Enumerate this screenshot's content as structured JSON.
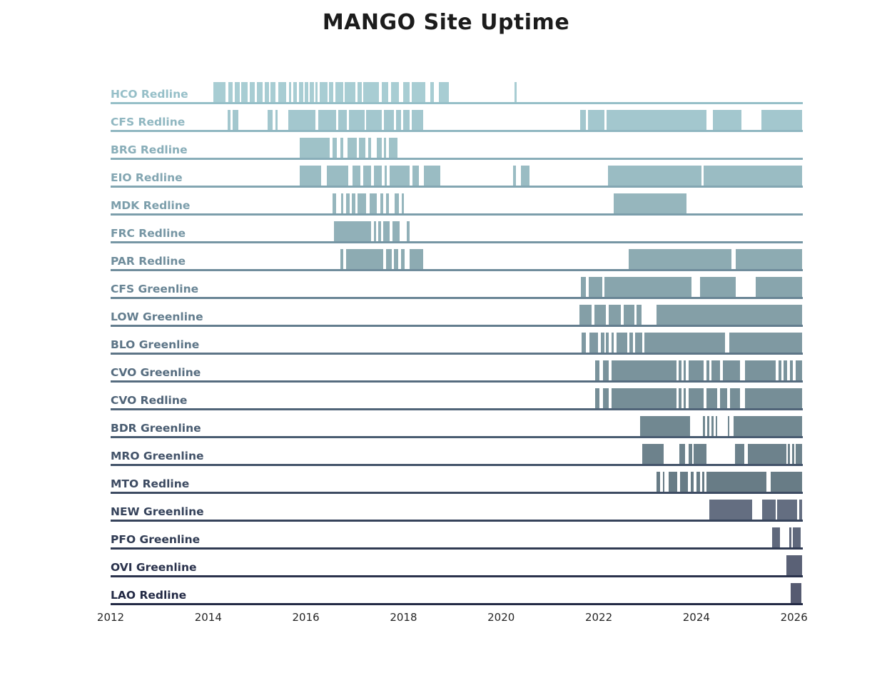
{
  "title": "MANGO Site Uptime",
  "chart_data": {
    "type": "timeline",
    "title": "MANGO Site Uptime",
    "xlabel": "",
    "ylabel": "",
    "x_axis": {
      "range": [
        2012,
        2026.18
      ],
      "ticks": [
        2012,
        2014,
        2016,
        2018,
        2020,
        2022,
        2024,
        2026
      ],
      "tick_labels": [
        "2012",
        "2014",
        "2016",
        "2018",
        "2020",
        "2022",
        "2024",
        "2026"
      ]
    },
    "legend": "none",
    "grid": "off",
    "rows": [
      {
        "label": "HCO Redline",
        "bar_color": "#a8cdd3",
        "line_color": "#96bfc8",
        "segments": [
          [
            2014.1,
            2014.36
          ],
          [
            2014.41,
            2014.5
          ],
          [
            2014.54,
            2014.64
          ],
          [
            2014.68,
            2014.8
          ],
          [
            2014.85,
            2014.95
          ],
          [
            2015.0,
            2015.12
          ],
          [
            2015.16,
            2015.25
          ],
          [
            2015.28,
            2015.38
          ],
          [
            2015.44,
            2015.6
          ],
          [
            2015.65,
            2015.7
          ],
          [
            2015.74,
            2015.82
          ],
          [
            2015.86,
            2015.94
          ],
          [
            2015.97,
            2016.05
          ],
          [
            2016.08,
            2016.16
          ],
          [
            2016.19,
            2016.24
          ],
          [
            2016.28,
            2016.44
          ],
          [
            2016.48,
            2016.56
          ],
          [
            2016.6,
            2016.76
          ],
          [
            2016.8,
            2017.02
          ],
          [
            2017.06,
            2017.14
          ],
          [
            2017.18,
            2017.5
          ],
          [
            2017.55,
            2017.68
          ],
          [
            2017.74,
            2017.9
          ],
          [
            2018.0,
            2018.12
          ],
          [
            2018.17,
            2018.45
          ],
          [
            2018.55,
            2018.62
          ],
          [
            2018.72,
            2018.93
          ],
          [
            2020.27,
            2020.32
          ]
        ]
      },
      {
        "label": "CFS Redline",
        "bar_color": "#a3c7ce",
        "line_color": "#90b7c1",
        "segments": [
          [
            2014.4,
            2014.46
          ],
          [
            2014.5,
            2014.62
          ],
          [
            2015.22,
            2015.32
          ],
          [
            2015.38,
            2015.42
          ],
          [
            2015.64,
            2016.2
          ],
          [
            2016.25,
            2016.62
          ],
          [
            2016.66,
            2016.84
          ],
          [
            2016.88,
            2017.2
          ],
          [
            2017.24,
            2017.56
          ],
          [
            2017.6,
            2017.8
          ],
          [
            2017.85,
            2017.95
          ],
          [
            2018.0,
            2018.12
          ],
          [
            2018.17,
            2018.4
          ],
          [
            2021.62,
            2021.73
          ],
          [
            2021.78,
            2022.11
          ],
          [
            2022.16,
            2024.2
          ],
          [
            2024.34,
            2024.92
          ],
          [
            2025.33,
            2026.17
          ]
        ]
      },
      {
        "label": "BRG Redline",
        "bar_color": "#9fc2c8",
        "line_color": "#89aeb9",
        "segments": [
          [
            2015.87,
            2016.49
          ],
          [
            2016.55,
            2016.64
          ],
          [
            2016.7,
            2016.77
          ],
          [
            2016.86,
            2017.05
          ],
          [
            2017.09,
            2017.22
          ],
          [
            2017.28,
            2017.34
          ],
          [
            2017.46,
            2017.56
          ],
          [
            2017.6,
            2017.64
          ],
          [
            2017.7,
            2017.87
          ]
        ]
      },
      {
        "label": "EIO Redline",
        "bar_color": "#9abcc3",
        "line_color": "#83a6b2",
        "segments": [
          [
            2015.88,
            2016.31
          ],
          [
            2016.43,
            2016.87
          ],
          [
            2016.95,
            2017.11
          ],
          [
            2017.17,
            2017.33
          ],
          [
            2017.39,
            2017.56
          ],
          [
            2017.61,
            2017.66
          ],
          [
            2017.71,
            2018.12
          ],
          [
            2018.18,
            2018.32
          ],
          [
            2018.42,
            2018.76
          ],
          [
            2020.24,
            2020.31
          ],
          [
            2020.4,
            2020.58
          ],
          [
            2022.19,
            2024.1
          ],
          [
            2024.15,
            2026.17
          ]
        ]
      },
      {
        "label": "MDK Redline",
        "bar_color": "#96b6bd",
        "line_color": "#7c9eab",
        "segments": [
          [
            2016.54,
            2016.62
          ],
          [
            2016.72,
            2016.77
          ],
          [
            2016.82,
            2016.9
          ],
          [
            2016.94,
            2017.02
          ],
          [
            2017.06,
            2017.24
          ],
          [
            2017.3,
            2017.46
          ],
          [
            2017.52,
            2017.58
          ],
          [
            2017.64,
            2017.7
          ],
          [
            2017.82,
            2017.9
          ],
          [
            2017.96,
            2018.01
          ],
          [
            2022.3,
            2023.79
          ]
        ]
      },
      {
        "label": "FRC Redline",
        "bar_color": "#91b0b8",
        "line_color": "#7696a4",
        "segments": [
          [
            2016.58,
            2017.34
          ],
          [
            2017.39,
            2017.44
          ],
          [
            2017.48,
            2017.54
          ],
          [
            2017.59,
            2017.72
          ],
          [
            2017.77,
            2017.92
          ],
          [
            2018.07,
            2018.12
          ]
        ]
      },
      {
        "label": "PAR Redline",
        "bar_color": "#8dabb2",
        "line_color": "#708d9c",
        "segments": [
          [
            2016.7,
            2016.77
          ],
          [
            2016.83,
            2017.58
          ],
          [
            2017.64,
            2017.76
          ],
          [
            2017.81,
            2017.89
          ],
          [
            2017.95,
            2018.03
          ],
          [
            2018.13,
            2018.4
          ],
          [
            2022.62,
            2024.72
          ],
          [
            2024.8,
            2026.17
          ]
        ]
      },
      {
        "label": "CFS Greenline",
        "bar_color": "#88a5ad",
        "line_color": "#698595",
        "segments": [
          [
            2021.63,
            2021.74
          ],
          [
            2021.79,
            2022.07
          ],
          [
            2022.12,
            2023.9
          ],
          [
            2024.08,
            2024.8
          ],
          [
            2025.22,
            2026.17
          ]
        ]
      },
      {
        "label": "LOW Greenline",
        "bar_color": "#849fa7",
        "line_color": "#637d8e",
        "segments": [
          [
            2021.6,
            2021.86
          ],
          [
            2021.91,
            2022.14
          ],
          [
            2022.2,
            2022.45
          ],
          [
            2022.51,
            2022.73
          ],
          [
            2022.78,
            2022.88
          ],
          [
            2023.18,
            2026.17
          ]
        ]
      },
      {
        "label": "BLO Greenline",
        "bar_color": "#7f99a2",
        "line_color": "#5d7587",
        "segments": [
          [
            2021.65,
            2021.74
          ],
          [
            2021.81,
            2021.99
          ],
          [
            2022.05,
            2022.11
          ],
          [
            2022.15,
            2022.21
          ],
          [
            2022.26,
            2022.31
          ],
          [
            2022.36,
            2022.58
          ],
          [
            2022.63,
            2022.7
          ],
          [
            2022.74,
            2022.89
          ],
          [
            2022.93,
            2024.59
          ],
          [
            2024.68,
            2026.17
          ]
        ]
      },
      {
        "label": "CVO Greenline",
        "bar_color": "#7a939c",
        "line_color": "#566c7f",
        "segments": [
          [
            2021.92,
            2022.02
          ],
          [
            2022.08,
            2022.2
          ],
          [
            2022.26,
            2023.59
          ],
          [
            2023.64,
            2023.69
          ],
          [
            2023.74,
            2023.79
          ],
          [
            2023.84,
            2024.15
          ],
          [
            2024.2,
            2024.26
          ],
          [
            2024.31,
            2024.49
          ],
          [
            2024.55,
            2024.9
          ],
          [
            2025.0,
            2025.63
          ],
          [
            2025.68,
            2025.74
          ],
          [
            2025.79,
            2025.86
          ],
          [
            2025.91,
            2025.98
          ],
          [
            2026.03,
            2026.17
          ]
        ]
      },
      {
        "label": "CVO Redline",
        "bar_color": "#768e97",
        "line_color": "#506478",
        "segments": [
          [
            2021.92,
            2022.02
          ],
          [
            2022.08,
            2022.2
          ],
          [
            2022.26,
            2023.59
          ],
          [
            2023.64,
            2023.69
          ],
          [
            2023.74,
            2023.79
          ],
          [
            2023.84,
            2024.15
          ],
          [
            2024.2,
            2024.43
          ],
          [
            2024.48,
            2024.63
          ],
          [
            2024.69,
            2024.9
          ],
          [
            2025.0,
            2026.17
          ]
        ]
      },
      {
        "label": "BDR Greenline",
        "bar_color": "#718891",
        "line_color": "#495c71",
        "segments": [
          [
            2022.84,
            2023.87
          ],
          [
            2024.13,
            2024.17
          ],
          [
            2024.22,
            2024.26
          ],
          [
            2024.31,
            2024.35
          ],
          [
            2024.39,
            2024.42
          ],
          [
            2024.65,
            2024.68
          ],
          [
            2024.76,
            2026.17
          ]
        ]
      },
      {
        "label": "MRO Greenline",
        "bar_color": "#6d828c",
        "line_color": "#435369",
        "segments": [
          [
            2022.89,
            2023.33
          ],
          [
            2023.65,
            2023.77
          ],
          [
            2023.84,
            2023.91
          ],
          [
            2023.95,
            2024.2
          ],
          [
            2024.79,
            2024.98
          ],
          [
            2025.05,
            2025.84
          ],
          [
            2025.88,
            2025.92
          ],
          [
            2025.96,
            2026.0
          ],
          [
            2026.03,
            2026.17
          ]
        ]
      },
      {
        "label": "MTO Redline",
        "bar_color": "#687c86",
        "line_color": "#3d4b62",
        "segments": [
          [
            2023.18,
            2023.25
          ],
          [
            2023.31,
            2023.35
          ],
          [
            2023.43,
            2023.61
          ],
          [
            2023.66,
            2023.83
          ],
          [
            2023.88,
            2023.95
          ],
          [
            2024.0,
            2024.08
          ],
          [
            2024.12,
            2024.17
          ],
          [
            2024.21,
            2025.44
          ],
          [
            2025.52,
            2026.17
          ]
        ]
      },
      {
        "label": "NEW Greenline",
        "bar_color": "#646e81",
        "line_color": "#36435b",
        "segments": [
          [
            2024.26,
            2025.14
          ],
          [
            2025.34,
            2025.62
          ],
          [
            2025.66,
            2026.06
          ],
          [
            2026.1,
            2026.16
          ]
        ]
      },
      {
        "label": "PFO Greenline",
        "bar_color": "#5f687c",
        "line_color": "#303b53",
        "segments": [
          [
            2025.55,
            2025.71
          ],
          [
            2025.9,
            2025.94
          ],
          [
            2025.98,
            2026.13
          ]
        ]
      },
      {
        "label": "OVI Greenline",
        "bar_color": "#5a6176",
        "line_color": "#2a324c",
        "segments": [
          [
            2025.85,
            2026.16
          ]
        ]
      },
      {
        "label": "LAO Redline",
        "bar_color": "#565b71",
        "line_color": "#232a45",
        "segments": [
          [
            2025.93,
            2026.15
          ]
        ]
      }
    ]
  }
}
